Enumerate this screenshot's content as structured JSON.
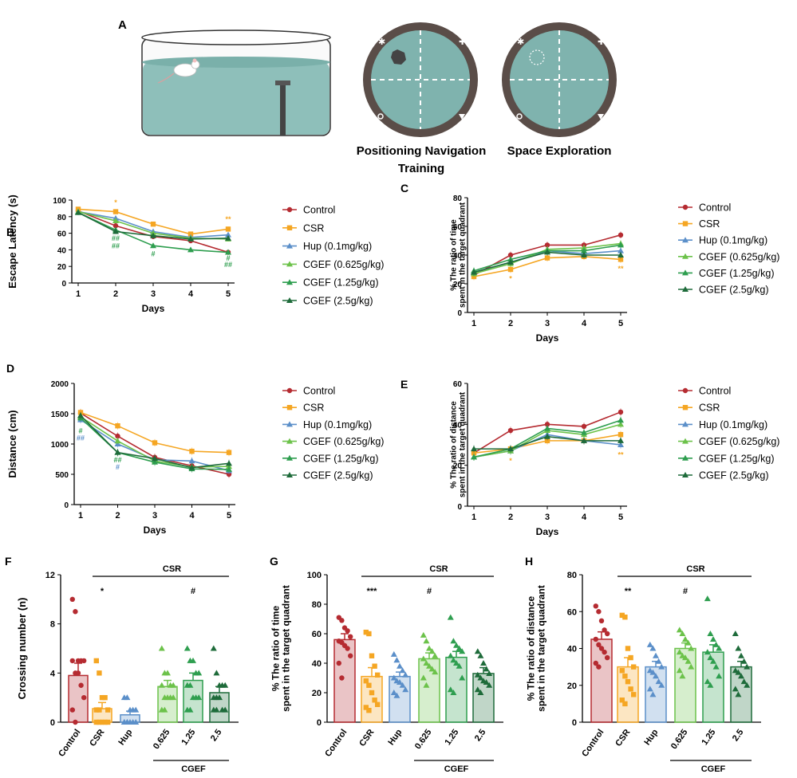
{
  "colors": {
    "control": "#B52B31",
    "csr": "#F5A623",
    "hup": "#5B8FC9",
    "cgef1": "#6CC24A",
    "cgef2": "#2E9E4F",
    "cgef3": "#1E6B3A",
    "pool": "#7FB3AE",
    "ring": "#5A4D48"
  },
  "panel_a": {
    "letter": "A",
    "nav_line1": "Positioning Navigation",
    "nav_line2": "Training",
    "space_title": "Space Exploration"
  },
  "legend": {
    "labels": [
      "Control",
      "CSR",
      "Hup (0.1mg/kg)",
      "CGEF (0.625g/kg)",
      "CGEF (1.25g/kg)",
      "CGEF (2.5g/kg)"
    ]
  },
  "chart_data": [
    {
      "id": "B",
      "type": "line",
      "letter": "B",
      "xlabel": "Days",
      "ylabel": "Escape Latency (s)",
      "x": [
        1,
        2,
        3,
        4,
        5
      ],
      "ylim": [
        0,
        100
      ],
      "yticks": [
        0,
        20,
        40,
        60,
        80,
        100
      ],
      "series": [
        {
          "name": "Control",
          "values": [
            87,
            69,
            56,
            51,
            37
          ]
        },
        {
          "name": "CSR",
          "values": [
            89,
            86,
            71,
            59,
            65
          ]
        },
        {
          "name": "Hup (0.1mg/kg)",
          "values": [
            86,
            78,
            62,
            55,
            58
          ]
        },
        {
          "name": "CGEF (0.625g/kg)",
          "values": [
            86,
            75,
            60,
            54,
            53
          ]
        },
        {
          "name": "CGEF (1.25g/kg)",
          "values": [
            85,
            64,
            45,
            40,
            37
          ]
        },
        {
          "name": "CGEF (2.5g/kg)",
          "values": [
            85,
            62,
            57,
            53,
            54
          ]
        }
      ],
      "annotations": [
        {
          "x": 2,
          "y": 94,
          "text": "*",
          "color": "csr"
        },
        {
          "x": 5,
          "y": 74,
          "text": "**",
          "color": "csr"
        },
        {
          "x": 2,
          "y": 51,
          "text": "##",
          "color": "cgef2"
        },
        {
          "x": 2,
          "y": 42,
          "text": "##",
          "color": "cgef2"
        },
        {
          "x": 3,
          "y": 32,
          "text": "#",
          "color": "cgef2"
        },
        {
          "x": 5,
          "y": 27,
          "text": "#",
          "color": "cgef2"
        },
        {
          "x": 5,
          "y": 19,
          "text": "##",
          "color": "cgef2"
        }
      ]
    },
    {
      "id": "C",
      "type": "line",
      "letter": "C",
      "xlabel": "Days",
      "ylabel": "% The ratio of time spent in the target quadrant",
      "x": [
        1,
        2,
        3,
        4,
        5
      ],
      "ylim": [
        0,
        80
      ],
      "yticks": [
        0,
        20,
        40,
        60,
        80
      ],
      "series": [
        {
          "name": "Control",
          "values": [
            26,
            40,
            47,
            47,
            54
          ]
        },
        {
          "name": "CSR",
          "values": [
            25,
            30,
            38,
            39,
            37
          ]
        },
        {
          "name": "Hup (0.1mg/kg)",
          "values": [
            28,
            35,
            43,
            41,
            43
          ]
        },
        {
          "name": "CGEF (0.625g/kg)",
          "values": [
            27,
            34,
            44,
            45,
            48
          ]
        },
        {
          "name": "CGEF (1.25g/kg)",
          "values": [
            29,
            37,
            43,
            43,
            47
          ]
        },
        {
          "name": "CGEF (2.5g/kg)",
          "values": [
            28,
            35,
            42,
            40,
            40
          ]
        }
      ],
      "annotations": [
        {
          "x": 2,
          "y": 22,
          "text": "*",
          "color": "csr"
        },
        {
          "x": 5,
          "y": 29,
          "text": "**",
          "color": "csr"
        }
      ]
    },
    {
      "id": "D",
      "type": "line",
      "letter": "D",
      "xlabel": "Days",
      "ylabel": "Distance (cm)",
      "x": [
        1,
        2,
        3,
        4,
        5
      ],
      "ylim": [
        0,
        2000
      ],
      "yticks": [
        0,
        500,
        1000,
        1500,
        2000
      ],
      "series": [
        {
          "name": "Control",
          "values": [
            1510,
            1130,
            780,
            640,
            500
          ]
        },
        {
          "name": "CSR",
          "values": [
            1520,
            1300,
            1020,
            880,
            860
          ]
        },
        {
          "name": "Hup (0.1mg/kg)",
          "values": [
            1400,
            1000,
            740,
            720,
            560
          ]
        },
        {
          "name": "CGEF (0.625g/kg)",
          "values": [
            1450,
            1050,
            720,
            620,
            630
          ]
        },
        {
          "name": "CGEF (1.25g/kg)",
          "values": [
            1430,
            860,
            700,
            590,
            580
          ]
        },
        {
          "name": "CGEF (2.5g/kg)",
          "values": [
            1470,
            860,
            760,
            610,
            680
          ]
        }
      ],
      "annotations": [
        {
          "x": 1,
          "y": 1180,
          "text": "#",
          "color": "cgef2"
        },
        {
          "x": 1,
          "y": 1060,
          "text": "##",
          "color": "hup"
        },
        {
          "x": 2,
          "y": 700,
          "text": "##",
          "color": "cgef2"
        },
        {
          "x": 2,
          "y": 580,
          "text": "#",
          "color": "hup"
        }
      ]
    },
    {
      "id": "E",
      "type": "line",
      "letter": "E",
      "xlabel": "Days",
      "ylabel": "% The ratio of distance spent in the target quadrant",
      "x": [
        1,
        2,
        3,
        4,
        5
      ],
      "ylim": [
        0,
        60
      ],
      "yticks": [
        0,
        20,
        40,
        60
      ],
      "series": [
        {
          "name": "Control",
          "values": [
            26,
            37,
            40,
            39,
            46
          ]
        },
        {
          "name": "CSR",
          "values": [
            26,
            28,
            32,
            32,
            35
          ]
        },
        {
          "name": "Hup (0.1mg/kg)",
          "values": [
            24,
            27,
            35,
            32,
            30
          ]
        },
        {
          "name": "CGEF (0.625g/kg)",
          "values": [
            24,
            27,
            37,
            35,
            40
          ]
        },
        {
          "name": "CGEF (1.25g/kg)",
          "values": [
            24,
            28,
            38,
            36,
            42
          ]
        },
        {
          "name": "CGEF (2.5g/kg)",
          "values": [
            28,
            28,
            34,
            32,
            32
          ]
        }
      ],
      "annotations": [
        {
          "x": 2,
          "y": 21,
          "text": "*",
          "color": "csr"
        },
        {
          "x": 5,
          "y": 24,
          "text": "**",
          "color": "csr"
        }
      ]
    },
    {
      "id": "F",
      "type": "bar",
      "letter": "F",
      "ylabel": "Crossing number (n)",
      "categories": [
        "Control",
        "CSR",
        "Hup",
        "0.625",
        "1.25",
        "2.5"
      ],
      "group_label": "CGEF",
      "bracket_label": "CSR",
      "ylim": [
        0,
        12
      ],
      "yticks": [
        0,
        4,
        8,
        12
      ],
      "values": [
        3.8,
        1.1,
        0.6,
        2.9,
        3.4,
        2.4
      ],
      "errors": [
        1.0,
        0.5,
        0.3,
        0.5,
        0.6,
        0.5
      ],
      "points": [
        [
          10,
          9,
          5,
          5,
          5,
          5,
          4,
          4,
          3,
          2,
          1,
          0
        ],
        [
          5,
          4,
          2,
          2,
          1,
          1,
          1,
          0,
          0,
          0,
          0,
          0
        ],
        [
          2,
          2,
          1,
          1,
          1,
          0,
          0,
          0,
          0,
          0,
          0,
          0
        ],
        [
          6,
          4,
          4,
          3,
          3,
          3,
          2,
          2,
          2,
          2,
          1,
          1
        ],
        [
          6,
          5,
          5,
          4,
          4,
          3,
          3,
          2,
          2,
          2,
          1,
          1
        ],
        [
          6,
          4,
          3,
          3,
          3,
          2,
          2,
          2,
          1,
          1,
          1,
          1
        ]
      ],
      "annotations": [
        {
          "cat": 1,
          "text": "*"
        },
        {
          "cat": 4,
          "text": "#"
        }
      ]
    },
    {
      "id": "G",
      "type": "bar",
      "letter": "G",
      "ylabel": "% The ratio of time spent in the target quadrant",
      "categories": [
        "Control",
        "CSR",
        "Hup",
        "0.625",
        "1.25",
        "2.5"
      ],
      "group_label": "CGEF",
      "bracket_label": "CSR",
      "ylim": [
        0,
        100
      ],
      "yticks": [
        0,
        20,
        40,
        60,
        80,
        100
      ],
      "values": [
        56,
        31,
        31,
        43,
        44,
        33
      ],
      "errors": [
        4,
        6,
        3,
        4,
        4,
        4
      ],
      "points": [
        [
          71,
          69,
          64,
          62,
          58,
          55,
          54,
          52,
          50,
          45,
          40,
          30
        ],
        [
          61,
          60,
          45,
          38,
          32,
          28,
          25,
          20,
          15,
          12,
          10,
          8
        ],
        [
          46,
          42,
          38,
          35,
          32,
          30,
          28,
          27,
          25,
          22,
          20,
          18
        ],
        [
          59,
          55,
          50,
          48,
          45,
          43,
          40,
          38,
          36,
          34,
          30,
          25
        ],
        [
          71,
          55,
          52,
          50,
          48,
          45,
          42,
          40,
          38,
          30,
          22,
          20
        ],
        [
          48,
          45,
          40,
          36,
          33,
          32,
          30,
          28,
          27,
          25,
          22,
          20
        ]
      ],
      "annotations": [
        {
          "cat": 1,
          "text": "***"
        },
        {
          "cat": 3,
          "text": "#"
        }
      ]
    },
    {
      "id": "H",
      "type": "bar",
      "letter": "H",
      "ylabel": "% The ratio of distance spent in the target quadrant",
      "categories": [
        "Control",
        "CSR",
        "Hup",
        "0.625",
        "1.25",
        "2.5"
      ],
      "group_label": "CGEF",
      "bracket_label": "CSR",
      "ylim": [
        0,
        80
      ],
      "yticks": [
        0,
        20,
        40,
        60,
        80
      ],
      "values": [
        45,
        30,
        30,
        40,
        38,
        30
      ],
      "errors": [
        4,
        5,
        3,
        3,
        4,
        3
      ],
      "points": [
        [
          63,
          60,
          55,
          50,
          48,
          45,
          42,
          40,
          38,
          35,
          32,
          30
        ],
        [
          58,
          57,
          40,
          35,
          30,
          28,
          25,
          22,
          18,
          15,
          12,
          10
        ],
        [
          42,
          40,
          36,
          33,
          30,
          28,
          27,
          25,
          22,
          20,
          18,
          15
        ],
        [
          50,
          48,
          45,
          43,
          40,
          38,
          36,
          35,
          33,
          30,
          28,
          25
        ],
        [
          67,
          48,
          45,
          42,
          40,
          38,
          35,
          33,
          30,
          25,
          22,
          20
        ],
        [
          48,
          40,
          36,
          33,
          30,
          28,
          27,
          25,
          22,
          20,
          18,
          15
        ]
      ],
      "annotations": [
        {
          "cat": 1,
          "text": "**"
        },
        {
          "cat": 3,
          "text": "#"
        }
      ]
    }
  ]
}
